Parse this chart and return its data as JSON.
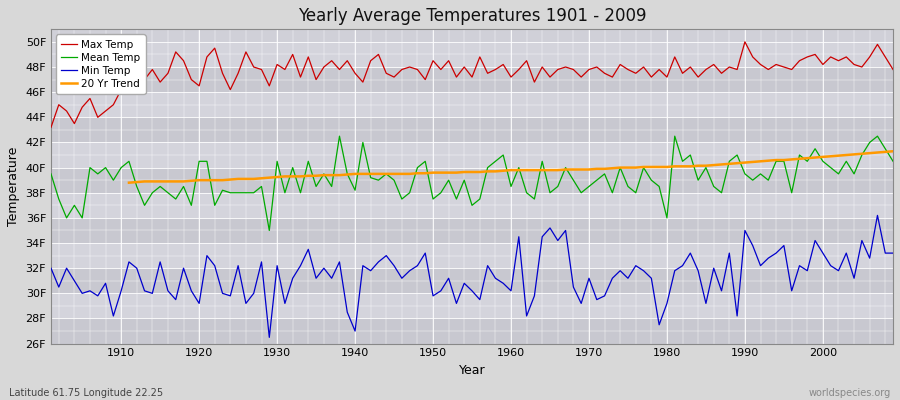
{
  "title": "Yearly Average Temperatures 1901 - 2009",
  "xlabel": "Year",
  "ylabel": "Temperature",
  "lat_lon_label": "Latitude 61.75 Longitude 22.25",
  "credit": "worldspecies.org",
  "years": [
    1901,
    1902,
    1903,
    1904,
    1905,
    1906,
    1907,
    1908,
    1909,
    1910,
    1911,
    1912,
    1913,
    1914,
    1915,
    1916,
    1917,
    1918,
    1919,
    1920,
    1921,
    1922,
    1923,
    1924,
    1925,
    1926,
    1927,
    1928,
    1929,
    1930,
    1931,
    1932,
    1933,
    1934,
    1935,
    1936,
    1937,
    1938,
    1939,
    1940,
    1941,
    1942,
    1943,
    1944,
    1945,
    1946,
    1947,
    1948,
    1949,
    1950,
    1951,
    1952,
    1953,
    1954,
    1955,
    1956,
    1957,
    1958,
    1959,
    1960,
    1961,
    1962,
    1963,
    1964,
    1965,
    1966,
    1967,
    1968,
    1969,
    1970,
    1971,
    1972,
    1973,
    1974,
    1975,
    1976,
    1977,
    1978,
    1979,
    1980,
    1981,
    1982,
    1983,
    1984,
    1985,
    1986,
    1987,
    1988,
    1989,
    1990,
    1991,
    1992,
    1993,
    1994,
    1995,
    1996,
    1997,
    1998,
    1999,
    2000,
    2001,
    2002,
    2003,
    2004,
    2005,
    2006,
    2007,
    2008,
    2009
  ],
  "max_temp": [
    43.2,
    45.0,
    44.5,
    43.5,
    44.8,
    45.5,
    44.0,
    44.5,
    45.0,
    46.2,
    49.0,
    48.5,
    47.0,
    47.8,
    46.8,
    47.5,
    49.2,
    48.5,
    47.0,
    46.5,
    48.8,
    49.5,
    47.5,
    46.2,
    47.5,
    49.2,
    48.0,
    47.8,
    46.5,
    48.2,
    47.8,
    49.0,
    47.2,
    48.8,
    47.0,
    48.0,
    48.5,
    47.8,
    48.5,
    47.5,
    46.8,
    48.5,
    49.0,
    47.5,
    47.2,
    47.8,
    48.0,
    47.8,
    47.0,
    48.5,
    47.8,
    48.5,
    47.2,
    48.0,
    47.2,
    48.8,
    47.5,
    47.8,
    48.2,
    47.2,
    47.8,
    48.5,
    46.8,
    48.0,
    47.2,
    47.8,
    48.0,
    47.8,
    47.2,
    47.8,
    48.0,
    47.5,
    47.2,
    48.2,
    47.8,
    47.5,
    48.0,
    47.2,
    47.8,
    47.2,
    48.8,
    47.5,
    48.0,
    47.2,
    47.8,
    48.2,
    47.5,
    48.0,
    47.8,
    50.0,
    48.8,
    48.2,
    47.8,
    48.2,
    48.0,
    47.8,
    48.5,
    48.8,
    49.0,
    48.2,
    48.8,
    48.5,
    48.8,
    48.2,
    48.0,
    48.8,
    49.8,
    48.8,
    47.8
  ],
  "mean_temp": [
    39.5,
    37.5,
    36.0,
    37.0,
    36.0,
    40.0,
    39.5,
    40.0,
    39.0,
    40.0,
    40.5,
    38.5,
    37.0,
    38.0,
    38.5,
    38.0,
    37.5,
    38.5,
    37.0,
    40.5,
    40.5,
    37.0,
    38.2,
    38.0,
    38.0,
    38.0,
    38.0,
    38.5,
    35.0,
    40.5,
    38.0,
    40.0,
    38.0,
    40.5,
    38.5,
    39.5,
    38.5,
    42.5,
    39.5,
    38.2,
    42.0,
    39.2,
    39.0,
    39.5,
    39.0,
    37.5,
    38.0,
    40.0,
    40.5,
    37.5,
    38.0,
    39.0,
    37.5,
    39.0,
    37.0,
    37.5,
    40.0,
    40.5,
    41.0,
    38.5,
    40.0,
    38.0,
    37.5,
    40.5,
    38.0,
    38.5,
    40.0,
    39.0,
    38.0,
    38.5,
    39.0,
    39.5,
    38.0,
    40.0,
    38.5,
    38.0,
    40.0,
    39.0,
    38.5,
    36.0,
    42.5,
    40.5,
    41.0,
    39.0,
    40.0,
    38.5,
    38.0,
    40.5,
    41.0,
    39.5,
    39.0,
    39.5,
    39.0,
    40.5,
    40.5,
    38.0,
    41.0,
    40.5,
    41.5,
    40.5,
    40.0,
    39.5,
    40.5,
    39.5,
    41.0,
    42.0,
    42.5,
    41.5,
    40.5
  ],
  "min_temp": [
    32.0,
    30.5,
    32.0,
    31.0,
    30.0,
    30.2,
    29.8,
    30.8,
    28.2,
    30.2,
    32.5,
    32.0,
    30.2,
    30.0,
    32.5,
    30.2,
    29.5,
    32.0,
    30.2,
    29.2,
    33.0,
    32.2,
    30.0,
    29.8,
    32.2,
    29.2,
    30.0,
    32.5,
    26.5,
    32.2,
    29.2,
    31.2,
    32.2,
    33.5,
    31.2,
    32.0,
    31.2,
    32.5,
    28.5,
    27.0,
    32.2,
    31.8,
    32.5,
    33.0,
    32.2,
    31.2,
    31.8,
    32.2,
    33.2,
    29.8,
    30.2,
    31.2,
    29.2,
    30.8,
    30.2,
    29.5,
    32.2,
    31.2,
    30.8,
    30.2,
    34.5,
    28.2,
    29.8,
    34.5,
    35.2,
    34.2,
    35.0,
    30.5,
    29.2,
    31.2,
    29.5,
    29.8,
    31.2,
    31.8,
    31.2,
    32.2,
    31.8,
    31.2,
    27.5,
    29.2,
    31.8,
    32.2,
    33.2,
    31.8,
    29.2,
    32.0,
    30.2,
    33.2,
    28.2,
    35.0,
    33.8,
    32.2,
    32.8,
    33.2,
    33.8,
    30.2,
    32.2,
    31.8,
    34.2,
    33.2,
    32.2,
    31.8,
    33.2,
    31.2,
    34.2,
    32.8,
    36.2,
    33.2,
    33.2
  ],
  "trend_start_year": 1911,
  "trend_vals": [
    38.8,
    38.85,
    38.9,
    38.9,
    38.9,
    38.9,
    38.9,
    38.9,
    38.95,
    39.0,
    39.0,
    39.0,
    39.0,
    39.05,
    39.1,
    39.1,
    39.1,
    39.15,
    39.2,
    39.25,
    39.3,
    39.3,
    39.3,
    39.35,
    39.35,
    39.4,
    39.4,
    39.4,
    39.45,
    39.5,
    39.5,
    39.5,
    39.5,
    39.5,
    39.5,
    39.5,
    39.5,
    39.55,
    39.55,
    39.6,
    39.6,
    39.6,
    39.6,
    39.65,
    39.65,
    39.65,
    39.7,
    39.7,
    39.75,
    39.8,
    39.8,
    39.8,
    39.8,
    39.8,
    39.8,
    39.8,
    39.85,
    39.85,
    39.85,
    39.85,
    39.9,
    39.9,
    39.95,
    40.0,
    40.0,
    40.0,
    40.05,
    40.05,
    40.05,
    40.05,
    40.1,
    40.1,
    40.1,
    40.15,
    40.15,
    40.2,
    40.25,
    40.3,
    40.35,
    40.4,
    40.45,
    40.5,
    40.55,
    40.6,
    40.6,
    40.65,
    40.7,
    40.75,
    40.8,
    40.85,
    40.9,
    40.95,
    41.0,
    41.05,
    41.1,
    41.15,
    41.2,
    41.25,
    41.3
  ],
  "max_color": "#cc0000",
  "mean_color": "#00aa00",
  "min_color": "#0000cc",
  "trend_color": "#ff9900",
  "bg_color": "#d8d8d8",
  "plot_bg_color": "#d0d0d8",
  "grid_color": "#ffffff",
  "stripe_color1": "#cccccc",
  "stripe_color2": "#d8d8d8",
  "ylim": [
    26,
    51
  ],
  "yticks": [
    26,
    28,
    30,
    32,
    34,
    36,
    38,
    40,
    42,
    44,
    46,
    48,
    50
  ],
  "xlim": [
    1901,
    2009
  ],
  "xticks": [
    1910,
    1920,
    1930,
    1940,
    1950,
    1960,
    1970,
    1980,
    1990,
    2000
  ]
}
